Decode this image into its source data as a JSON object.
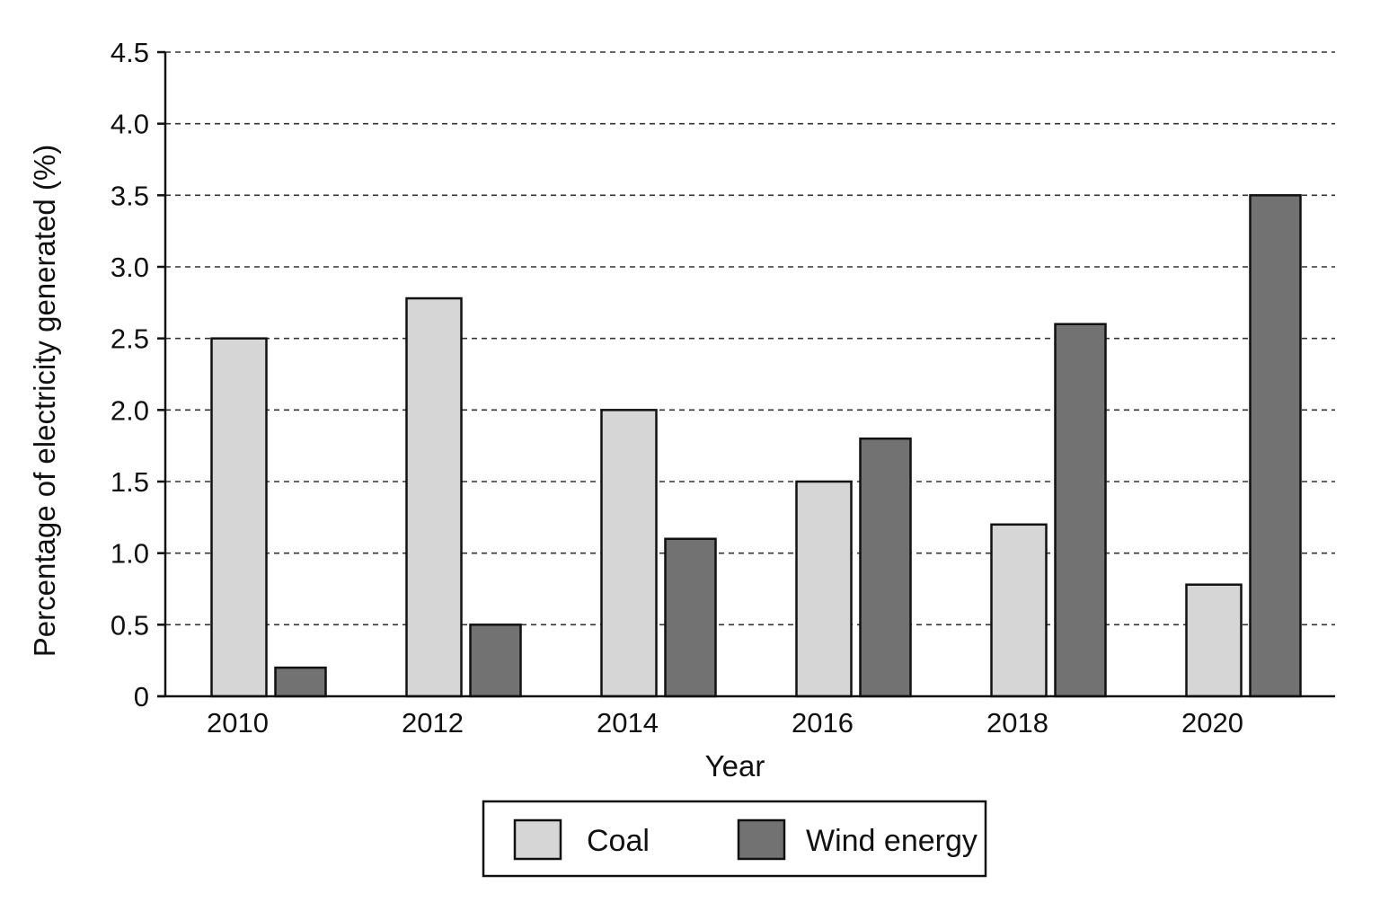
{
  "chart_data": {
    "type": "bar",
    "xlabel": "Year",
    "ylabel": "Percentage of electricity generated (%)",
    "categories": [
      "2010",
      "2012",
      "2014",
      "2016",
      "2018",
      "2020"
    ],
    "ylim": [
      0,
      4.5
    ],
    "yticks": [
      0,
      0.5,
      1.0,
      1.5,
      2.0,
      2.5,
      3.0,
      3.5,
      4.0,
      4.5
    ],
    "ytick_labels": [
      "0",
      "0.5",
      "1.0",
      "1.5",
      "2.0",
      "2.5",
      "3.0",
      "3.5",
      "4.0",
      "4.5"
    ],
    "grid": true,
    "legend_position": "bottom-center",
    "series": [
      {
        "name": "Coal",
        "color": "#d6d6d6",
        "values": [
          2.5,
          2.78,
          2.0,
          1.5,
          1.2,
          0.78
        ]
      },
      {
        "name": "Wind energy",
        "color": "#727272",
        "values": [
          0.2,
          0.5,
          1.1,
          1.8,
          2.6,
          3.5
        ]
      }
    ]
  }
}
